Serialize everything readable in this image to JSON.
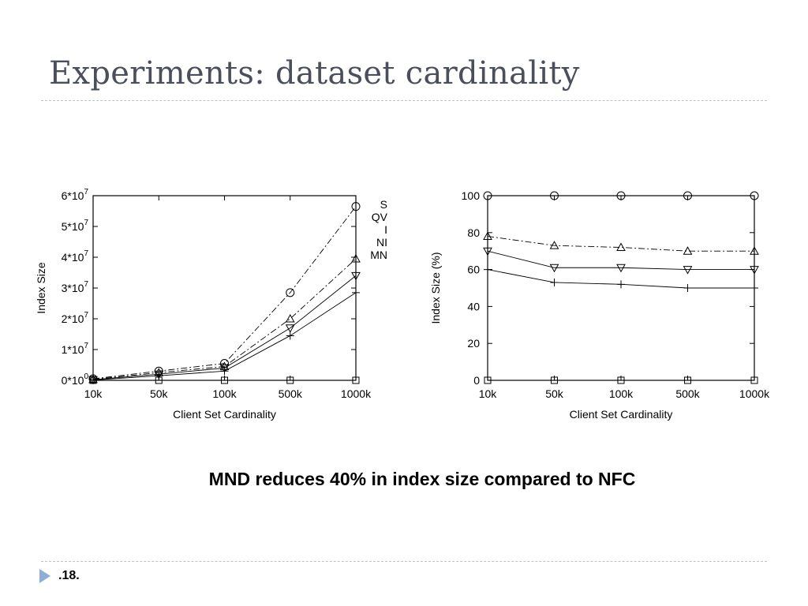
{
  "slide": {
    "title": "Experiments: dataset cardinality",
    "caption": "MND reduces 40% in index size compared to NFC",
    "page_number": ".18."
  },
  "chart_data": [
    {
      "type": "line",
      "xlabel": "Client Set Cardinality",
      "ylabel": "Index Size",
      "categories": [
        "10k",
        "50k",
        "100k",
        "500k",
        "1000k"
      ],
      "y_tick_mantissas": [
        "0",
        "1",
        "2",
        "3",
        "4",
        "5",
        "6"
      ],
      "y_tick_exponents": [
        "0",
        "7",
        "7",
        "7",
        "7",
        "7",
        "7"
      ],
      "ylim": [
        0,
        60000000
      ],
      "legend_position": "top-right (clipped at edge)",
      "legend_fragments": [
        "S",
        "QV",
        "I",
        "NI",
        "MN"
      ],
      "series": [
        {
          "marker": "circle",
          "dash": "dashdot",
          "values": [
            500000,
            3000000,
            5500000,
            28500000,
            56500000
          ]
        },
        {
          "marker": "triangle-up",
          "dash": "dashdot",
          "values": [
            300000,
            2500000,
            4500000,
            20000000,
            39500000
          ]
        },
        {
          "marker": "triangle-down",
          "dash": "solid",
          "values": [
            200000,
            2000000,
            4000000,
            17000000,
            34000000
          ]
        },
        {
          "marker": "plus",
          "dash": "solid",
          "values": [
            100000,
            1500000,
            3000000,
            14500000,
            28500000
          ]
        },
        {
          "marker": "square",
          "dash": "solid",
          "values": [
            0,
            0,
            0,
            0,
            0
          ]
        }
      ]
    },
    {
      "type": "line",
      "xlabel": "Client Set Cardinality",
      "ylabel": "Index Size (%)",
      "categories": [
        "10k",
        "50k",
        "100k",
        "500k",
        "1000k"
      ],
      "y_ticks": [
        "0",
        "20",
        "40",
        "60",
        "80",
        "100"
      ],
      "ylim": [
        0,
        100
      ],
      "series": [
        {
          "marker": "circle",
          "dash": "solid",
          "values": [
            100,
            100,
            100,
            100,
            100
          ]
        },
        {
          "marker": "triangle-up",
          "dash": "dashdot",
          "values": [
            78,
            73,
            72,
            70,
            70
          ]
        },
        {
          "marker": "triangle-down",
          "dash": "solid",
          "values": [
            70,
            61,
            61,
            60,
            60
          ]
        },
        {
          "marker": "plus",
          "dash": "solid",
          "values": [
            60,
            53,
            52,
            50,
            50
          ]
        },
        {
          "marker": "square",
          "dash": "solid",
          "values": [
            0,
            0,
            0,
            0,
            0
          ]
        }
      ]
    }
  ]
}
